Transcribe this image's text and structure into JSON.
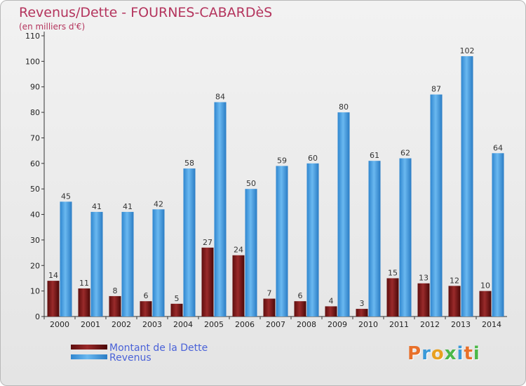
{
  "chart_data": {
    "type": "bar",
    "title": "Revenus/Dette - FOURNES-CABARDèS",
    "subtitle": "(en milliers d'€)",
    "categories": [
      "2000",
      "2001",
      "2002",
      "2003",
      "2004",
      "2005",
      "2006",
      "2007",
      "2008",
      "2009",
      "2010",
      "2011",
      "2012",
      "2013",
      "2014"
    ],
    "series": [
      {
        "name": "Montant de la Dette",
        "color": "#7a1a1a",
        "values": [
          14,
          11,
          8,
          6,
          5,
          27,
          24,
          7,
          6,
          4,
          3,
          15,
          13,
          12,
          10
        ]
      },
      {
        "name": "Revenus",
        "color": "#4fa3e3",
        "values": [
          45,
          41,
          41,
          42,
          58,
          84,
          50,
          59,
          60,
          80,
          61,
          62,
          87,
          102,
          64
        ]
      }
    ],
    "ylim": [
      0,
      110
    ],
    "yticks": [
      0,
      10,
      20,
      30,
      40,
      50,
      60,
      70,
      80,
      90,
      100,
      110
    ],
    "grid": false,
    "legend_position": "bottom-left",
    "colors": {
      "title": "#b4345d",
      "legend_text": "#4a62d8"
    }
  },
  "brand": {
    "logo_text": "Proxiti",
    "letter_colors": [
      "#e8702a",
      "#3a9ad9",
      "#e8a020",
      "#4cb848",
      "#3a9ad9",
      "#e8702a",
      "#4cb848"
    ]
  }
}
